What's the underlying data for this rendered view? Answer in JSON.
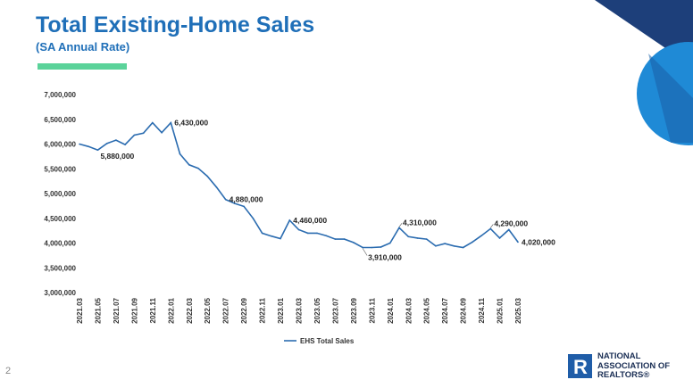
{
  "header": {
    "title": "Total Existing-Home Sales",
    "subtitle": "(SA Annual Rate)"
  },
  "footer": {
    "page_number": "2",
    "logo_letter": "R",
    "logo_line1": "NATIONAL",
    "logo_line2": "ASSOCIATION OF",
    "logo_line3": "REALTORS®"
  },
  "colors": {
    "title": "#1f6fb8",
    "accent": "#5bd39a",
    "line": "#2b6cb0",
    "corner_dark": "#1d3f7a",
    "corner_light": "#1f8ad6"
  },
  "chart_data": {
    "type": "line",
    "title": "",
    "xlabel": "",
    "ylabel": "",
    "ylim": [
      3000000,
      7000000
    ],
    "yticks": [
      "3,000,000",
      "3,500,000",
      "4,000,000",
      "4,500,000",
      "5,000,000",
      "5,500,000",
      "6,000,000",
      "6,500,000",
      "7,000,000"
    ],
    "x_tick_labels": [
      "2021.03",
      "2021.05",
      "2021.07",
      "2021.09",
      "2021.11",
      "2022.01",
      "2022.03",
      "2022.05",
      "2022.07",
      "2022.09",
      "2022.11",
      "2023.01",
      "2023.03",
      "2023.05",
      "2023.07",
      "2023.09",
      "2023.11",
      "2024.01",
      "2024.03",
      "2024.05",
      "2024.07",
      "2024.09",
      "2024.11",
      "2025.01",
      "2025.03"
    ],
    "legend": "EHS Total Sales",
    "legend_position": "bottom",
    "series": [
      {
        "name": "EHS Total Sales",
        "values": [
          6000000,
          5950000,
          5880000,
          6010000,
          6080000,
          5990000,
          6180000,
          6220000,
          6430000,
          6230000,
          6430000,
          5800000,
          5580000,
          5510000,
          5350000,
          5130000,
          4880000,
          4800000,
          4740000,
          4500000,
          4200000,
          4140000,
          4090000,
          4460000,
          4270000,
          4200000,
          4200000,
          4150000,
          4080000,
          4080000,
          4010000,
          3910000,
          3910000,
          3920000,
          4000000,
          4310000,
          4130000,
          4100000,
          4080000,
          3940000,
          3990000,
          3940000,
          3910000,
          4020000,
          4150000,
          4290000,
          4100000,
          4270000,
          4020000
        ]
      }
    ],
    "annotations": [
      {
        "index": 2,
        "text": "5,880,000",
        "position": "below-right"
      },
      {
        "index": 10,
        "text": "6,430,000",
        "position": "right"
      },
      {
        "index": 16,
        "text": "4,880,000",
        "position": "right"
      },
      {
        "index": 23,
        "text": "4,460,000",
        "position": "right"
      },
      {
        "index": 31,
        "text": "3,910,000",
        "position": "below"
      },
      {
        "index": 35,
        "text": "4,310,000",
        "position": "above-right"
      },
      {
        "index": 45,
        "text": "4,290,000",
        "position": "above-right"
      },
      {
        "index": 48,
        "text": "4,020,000",
        "position": "right"
      }
    ]
  }
}
